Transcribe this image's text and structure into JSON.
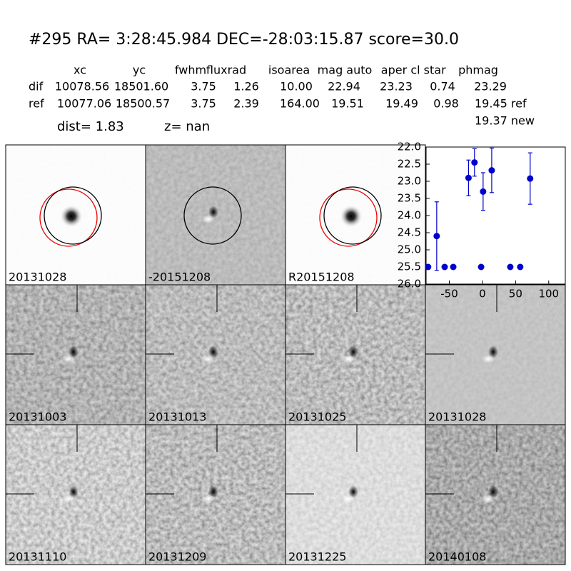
{
  "header": {
    "title": "#295   RA= 3:28:45.984 DEC=-28:03:15.87       score=30.0",
    "columns": [
      "xc",
      "yc",
      "fwhm",
      "fluxrad",
      "isoarea",
      "mag auto",
      "aper",
      "cl star",
      "phmag"
    ],
    "rows": [
      {
        "label": "dif",
        "cells": [
          "10078.56",
          "18501.60",
          "3.75",
          "1.26",
          "10.00",
          "22.94",
          "23.23",
          "0.74",
          "23.29"
        ]
      },
      {
        "label": "ref",
        "cells": [
          "10077.06",
          "18500.57",
          "3.75",
          "2.39",
          "164.00",
          "19.51",
          "19.49",
          "0.98",
          "19.45 ref"
        ]
      }
    ],
    "extra": "19.37 new",
    "dist": "dist=  1.83",
    "z": "z=   nan"
  },
  "panels": [
    "20131028",
    "-20151208",
    "R20151208",
    "20131003",
    "20131013",
    "20131025",
    "20131028",
    "20131110",
    "20131209",
    "20131225",
    "20140108"
  ],
  "chart_data": {
    "type": "scatter",
    "color": "#0000cc",
    "x": [
      -82,
      -69,
      -57,
      -44,
      -21,
      -12,
      -2,
      1,
      14,
      42,
      57,
      72
    ],
    "values": [
      25.5,
      24.6,
      25.5,
      25.5,
      22.9,
      22.45,
      25.5,
      23.3,
      22.68,
      25.5,
      25.5,
      22.92
    ],
    "errors": [
      0,
      1.0,
      0,
      0,
      0.52,
      0.4,
      0,
      0.55,
      0.65,
      0,
      0,
      0.75
    ],
    "xlim": [
      -85,
      125
    ],
    "ylim": [
      26,
      22
    ],
    "xticks": [
      -50,
      0,
      50,
      100
    ],
    "yticks": [
      {
        "value": 22,
        "label": "22.0"
      },
      {
        "value": 22.5,
        "label": "22.5"
      },
      {
        "value": 23,
        "label": "23.0"
      },
      {
        "value": 23.5,
        "label": "23.5"
      },
      {
        "value": 24,
        "label": "24.0"
      },
      {
        "value": 24.5,
        "label": "24.5"
      },
      {
        "value": 25,
        "label": "25.0"
      },
      {
        "value": 25.5,
        "label": "25.5"
      },
      {
        "value": 26,
        "label": "26.0"
      }
    ]
  }
}
